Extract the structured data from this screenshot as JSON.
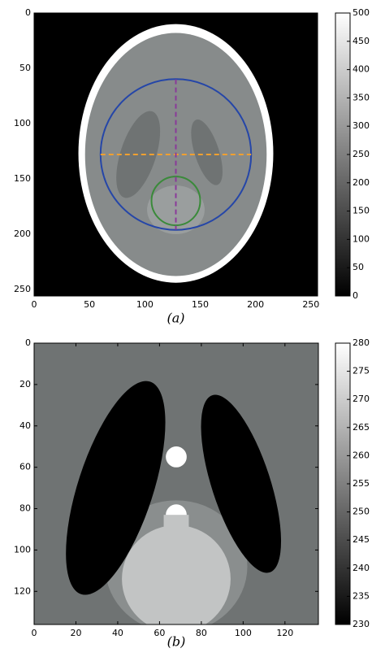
{
  "chart_data": [
    {
      "type": "image",
      "caption": "(a)",
      "xlim": [
        0,
        256
      ],
      "ylim": [
        256,
        0
      ],
      "xticks": [
        0,
        50,
        100,
        150,
        200,
        250
      ],
      "yticks": [
        0,
        50,
        100,
        150,
        200,
        250
      ],
      "colorbar": {
        "lim": [
          0,
          500
        ],
        "ticks": [
          0,
          50,
          100,
          150,
          200,
          250,
          300,
          350,
          400,
          450,
          500
        ]
      }
    },
    {
      "type": "image",
      "caption": "(b)",
      "xlim": [
        0,
        136
      ],
      "ylim": [
        136,
        0
      ],
      "xticks": [
        0,
        20,
        40,
        60,
        80,
        100,
        120
      ],
      "yticks": [
        0,
        20,
        40,
        60,
        80,
        100,
        120
      ],
      "colorbar": {
        "lim": [
          230,
          280
        ],
        "ticks": [
          230,
          235,
          240,
          245,
          250,
          255,
          260,
          265,
          270,
          275,
          280
        ]
      }
    }
  ]
}
